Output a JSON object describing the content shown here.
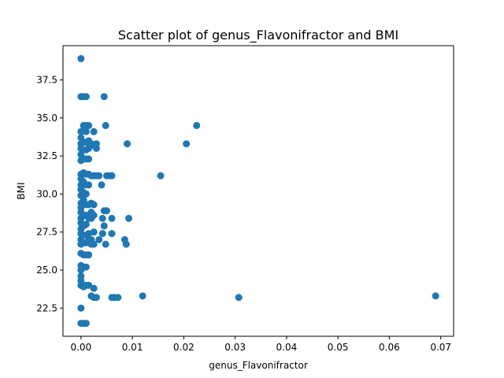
{
  "chart_data": {
    "type": "scatter",
    "title": "Scatter plot of genus_Flavonifractor and BMI",
    "xlabel": "genus_Flavonifractor",
    "ylabel": "BMI",
    "xlim": [
      -0.0035,
      0.0725
    ],
    "ylim": [
      20.65,
      39.75
    ],
    "xticks": [
      0.0,
      0.01,
      0.02,
      0.03,
      0.04,
      0.05,
      0.06,
      0.07
    ],
    "xtick_labels": [
      "0.00",
      "0.01",
      "0.02",
      "0.03",
      "0.04",
      "0.05",
      "0.06",
      "0.07"
    ],
    "yticks": [
      22.5,
      25.0,
      27.5,
      30.0,
      32.5,
      35.0,
      37.5
    ],
    "ytick_labels": [
      "22.5",
      "25.0",
      "27.5",
      "30.0",
      "32.5",
      "35.0",
      "37.5"
    ],
    "grid": false,
    "marker_color": "#1f77b4",
    "series": [
      {
        "name": "",
        "points": [
          [
            0.0,
            38.9
          ],
          [
            0.0,
            21.5
          ],
          [
            0.0005,
            21.5
          ],
          [
            0.001,
            21.5
          ],
          [
            0.0,
            22.5
          ],
          [
            0.0,
            24.0
          ],
          [
            0.0,
            24.3
          ],
          [
            0.0,
            24.6
          ],
          [
            0.0,
            25.0
          ],
          [
            0.0,
            25.3
          ],
          [
            0.0,
            26.1
          ],
          [
            0.0,
            26.7
          ],
          [
            0.0,
            27.0
          ],
          [
            0.0,
            27.4
          ],
          [
            0.0,
            27.7
          ],
          [
            0.0,
            28.1
          ],
          [
            0.0,
            28.4
          ],
          [
            0.0,
            28.8
          ],
          [
            0.0,
            29.1
          ],
          [
            0.0,
            29.4
          ],
          [
            0.0,
            29.9
          ],
          [
            0.0,
            30.3
          ],
          [
            0.0,
            30.6
          ],
          [
            0.0,
            31.0
          ],
          [
            0.0,
            31.3
          ],
          [
            0.0,
            32.2
          ],
          [
            0.0,
            32.6
          ],
          [
            0.0,
            33.0
          ],
          [
            0.0,
            33.3
          ],
          [
            0.0,
            33.7
          ],
          [
            0.0,
            34.1
          ],
          [
            0.0,
            36.4
          ],
          [
            0.0005,
            23.9
          ],
          [
            0.0005,
            25.2
          ],
          [
            0.0005,
            26.0
          ],
          [
            0.0005,
            26.8
          ],
          [
            0.0005,
            27.9
          ],
          [
            0.0005,
            28.6
          ],
          [
            0.0005,
            29.6
          ],
          [
            0.0005,
            30.1
          ],
          [
            0.0005,
            30.8
          ],
          [
            0.0005,
            31.4
          ],
          [
            0.0005,
            32.3
          ],
          [
            0.0005,
            33.4
          ],
          [
            0.0005,
            34.5
          ],
          [
            0.0005,
            36.4
          ],
          [
            0.001,
            24.0
          ],
          [
            0.001,
            25.2
          ],
          [
            0.001,
            26.0
          ],
          [
            0.001,
            26.8
          ],
          [
            0.001,
            27.3
          ],
          [
            0.001,
            28.0
          ],
          [
            0.001,
            28.6
          ],
          [
            0.001,
            29.3
          ],
          [
            0.001,
            30.0
          ],
          [
            0.001,
            30.6
          ],
          [
            0.001,
            31.3
          ],
          [
            0.001,
            32.3
          ],
          [
            0.001,
            32.9
          ],
          [
            0.001,
            33.4
          ],
          [
            0.001,
            34.1
          ],
          [
            0.001,
            34.5
          ],
          [
            0.001,
            36.4
          ],
          [
            0.0015,
            24.0
          ],
          [
            0.0015,
            26.0
          ],
          [
            0.0015,
            27.0
          ],
          [
            0.0015,
            27.4
          ],
          [
            0.0015,
            28.4
          ],
          [
            0.0015,
            29.3
          ],
          [
            0.0015,
            30.6
          ],
          [
            0.0015,
            31.3
          ],
          [
            0.0015,
            32.3
          ],
          [
            0.0015,
            33.0
          ],
          [
            0.0015,
            33.5
          ],
          [
            0.0015,
            34.5
          ],
          [
            0.002,
            23.3
          ],
          [
            0.002,
            26.7
          ],
          [
            0.002,
            27.0
          ],
          [
            0.002,
            28.4
          ],
          [
            0.002,
            28.8
          ],
          [
            0.002,
            29.4
          ],
          [
            0.002,
            31.2
          ],
          [
            0.002,
            33.3
          ],
          [
            0.0025,
            23.2
          ],
          [
            0.0025,
            23.8
          ],
          [
            0.0025,
            26.7
          ],
          [
            0.0025,
            27.5
          ],
          [
            0.0025,
            28.6
          ],
          [
            0.0025,
            29.3
          ],
          [
            0.0025,
            31.2
          ],
          [
            0.0025,
            33.2
          ],
          [
            0.0025,
            34.1
          ],
          [
            0.003,
            23.2
          ],
          [
            0.003,
            31.2
          ],
          [
            0.003,
            33.0
          ],
          [
            0.003,
            33.3
          ],
          [
            0.0035,
            27.0
          ],
          [
            0.0035,
            31.2
          ],
          [
            0.004,
            30.6
          ],
          [
            0.0042,
            27.4
          ],
          [
            0.0042,
            28.4
          ],
          [
            0.0045,
            27.9
          ],
          [
            0.0045,
            28.9
          ],
          [
            0.0045,
            36.4
          ],
          [
            0.0048,
            26.7
          ],
          [
            0.0048,
            34.5
          ],
          [
            0.005,
            28.9
          ],
          [
            0.005,
            31.2
          ],
          [
            0.0055,
            31.2
          ],
          [
            0.006,
            23.2
          ],
          [
            0.006,
            27.4
          ],
          [
            0.006,
            28.4
          ],
          [
            0.006,
            31.2
          ],
          [
            0.0065,
            23.2
          ],
          [
            0.0072,
            23.2
          ],
          [
            0.0085,
            27.0
          ],
          [
            0.0088,
            26.7
          ],
          [
            0.009,
            33.3
          ],
          [
            0.0093,
            28.4
          ],
          [
            0.012,
            23.3
          ],
          [
            0.0155,
            31.2
          ],
          [
            0.0205,
            33.3
          ],
          [
            0.0225,
            34.5
          ],
          [
            0.0307,
            23.2
          ],
          [
            0.069,
            23.3
          ]
        ]
      }
    ]
  }
}
